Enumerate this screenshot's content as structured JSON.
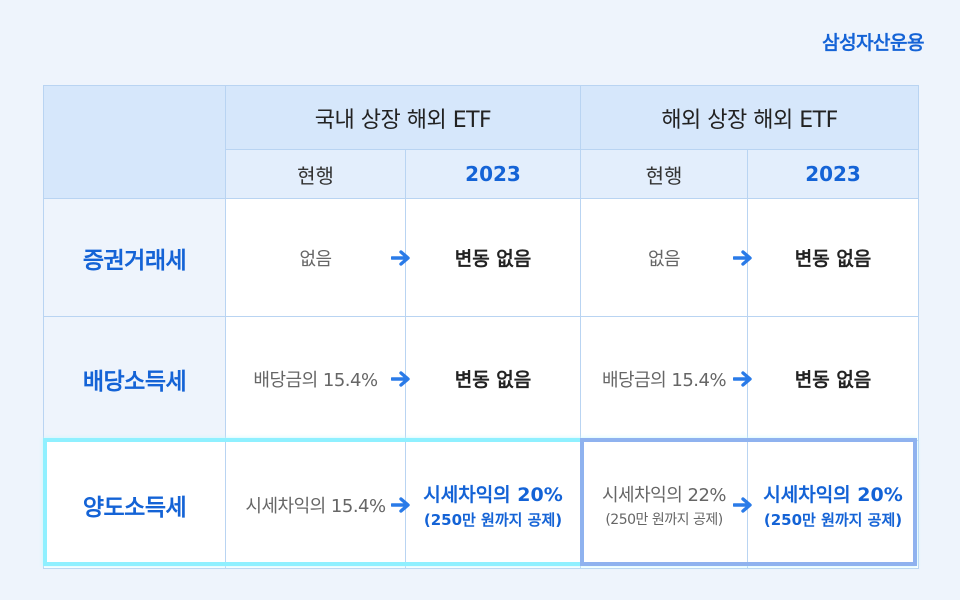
{
  "brand": "삼성자산운용",
  "header": {
    "group_domestic": "국내 상장 해외 ETF",
    "group_overseas": "해외 상장 해외 ETF",
    "current": "현행",
    "year": "2023"
  },
  "rows": [
    {
      "label": "증권거래세",
      "dom_current": "없음",
      "dom_new": "변동 없음",
      "ovs_current": "없음",
      "ovs_new": "변동 없음"
    },
    {
      "label": "배당소득세",
      "dom_current": "배당금의 15.4%",
      "dom_new": "변동 없음",
      "ovs_current": "배당금의 15.4%",
      "ovs_new": "변동 없음"
    },
    {
      "label": "양도소득세",
      "dom_current": "시세차익의 15.4%",
      "dom_new_l1": "시세차익의 20%",
      "dom_new_l2": "(250만 원까지 공제)",
      "ovs_current_l1": "시세차익의 22%",
      "ovs_current_l2": "(250만 원까지 공제)",
      "ovs_new_l1": "시세차익의 20%",
      "ovs_new_l2": "(250만 원까지 공제)"
    }
  ],
  "colors": {
    "accent": "#1463d6",
    "arrow": "#2a7be8",
    "highlight": "#8ff0ff"
  },
  "icons": {
    "arrow": "arrow-right-icon"
  }
}
